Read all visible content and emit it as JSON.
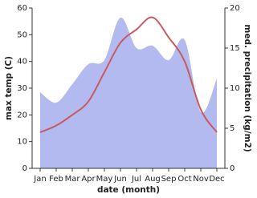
{
  "chart_data": {
    "type": "line",
    "categories": [
      "Jan",
      "Feb",
      "Mar",
      "Apr",
      "May",
      "Jun",
      "Jul",
      "Aug",
      "Sep",
      "Oct",
      "Nov",
      "Dec"
    ],
    "xlabel": "date (month)",
    "ylabel": "max temp (C)",
    "y2label": "med. precipitation (kg/m2)",
    "series": [
      {
        "name": "med. precipitation",
        "type": "area",
        "axis": "y2",
        "color": "#b3baf0",
        "values": [
          9.5,
          8.2,
          10.5,
          13,
          13.5,
          18.8,
          15,
          15.3,
          13.5,
          16,
          7,
          11.2
        ]
      },
      {
        "name": "max temp",
        "type": "line",
        "color": "#c85a5e",
        "values": [
          13.5,
          16,
          20,
          25,
          36,
          47,
          52,
          56.5,
          49,
          40,
          22,
          13.5
        ]
      }
    ],
    "ylim": [
      0,
      60
    ],
    "yticks": [
      0,
      10,
      20,
      30,
      40,
      50,
      60
    ],
    "y2lim": [
      0,
      20
    ],
    "y2ticks": [
      0,
      5,
      10,
      15,
      20
    ]
  }
}
